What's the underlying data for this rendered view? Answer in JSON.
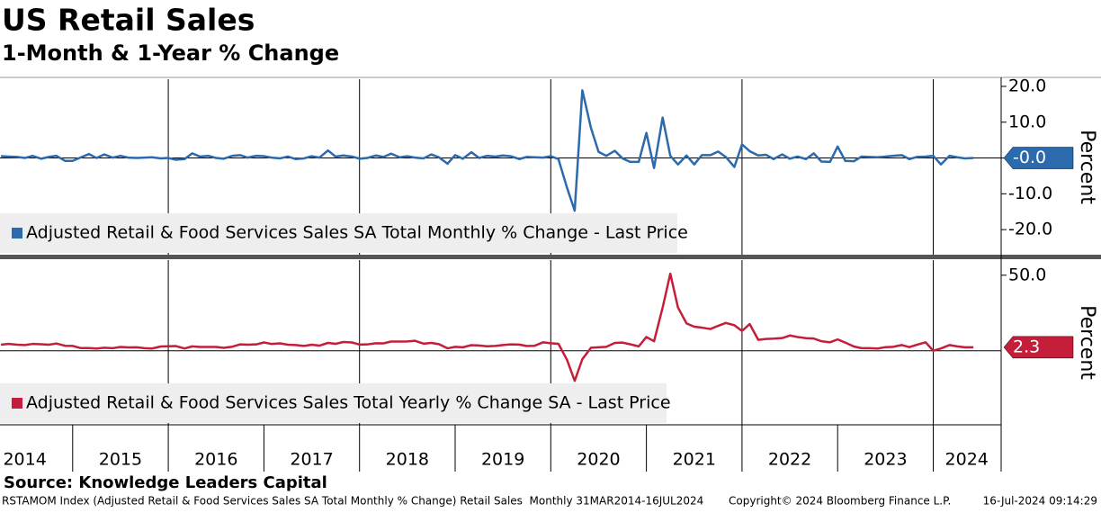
{
  "title": "US Retail Sales",
  "subtitle": "1-Month & 1-Year % Change",
  "source": "Source: Knowledge Leaders Capital",
  "footer": {
    "left": "RSTAMOM Index (Adjusted Retail & Food Services Sales SA Total Monthly % Change) Retail Sales  Monthly 31MAR2014-16JUL2024",
    "center": "Copyright© 2024 Bloomberg Finance L.P.",
    "right": "16-Jul-2024 09:14:29"
  },
  "chart_data": [
    {
      "type": "line",
      "y_label": "Percent",
      "legend": "bottom-left",
      "zero_line": true,
      "xlim": [
        2014.24,
        2024.71
      ],
      "xgrid": [
        2016,
        2018,
        2020,
        2022,
        2024
      ],
      "ylim": [
        -27,
        22
      ],
      "yticks": [
        {
          "value": -20,
          "label": "-20.0"
        },
        {
          "value": -10,
          "label": "-10.0"
        },
        {
          "value": 0,
          "label": "-0.0"
        },
        {
          "value": 10,
          "label": "10.0"
        },
        {
          "value": 20,
          "label": "20.0"
        }
      ],
      "x": [
        2014.25,
        2014.33,
        2014.42,
        2014.5,
        2014.58,
        2014.67,
        2014.75,
        2014.83,
        2014.92,
        2015,
        2015.08,
        2015.17,
        2015.25,
        2015.33,
        2015.42,
        2015.5,
        2015.58,
        2015.67,
        2015.75,
        2015.83,
        2015.92,
        2016,
        2016.08,
        2016.17,
        2016.25,
        2016.33,
        2016.42,
        2016.5,
        2016.58,
        2016.67,
        2016.75,
        2016.83,
        2016.92,
        2017,
        2017.08,
        2017.17,
        2017.25,
        2017.33,
        2017.42,
        2017.5,
        2017.58,
        2017.67,
        2017.75,
        2017.83,
        2017.92,
        2018,
        2018.08,
        2018.17,
        2018.25,
        2018.33,
        2018.42,
        2018.5,
        2018.58,
        2018.67,
        2018.75,
        2018.83,
        2018.92,
        2019,
        2019.08,
        2019.17,
        2019.25,
        2019.33,
        2019.42,
        2019.5,
        2019.58,
        2019.67,
        2019.75,
        2019.83,
        2019.92,
        2020,
        2020.08,
        2020.17,
        2020.25,
        2020.33,
        2020.42,
        2020.5,
        2020.58,
        2020.67,
        2020.75,
        2020.83,
        2020.92,
        2021,
        2021.08,
        2021.17,
        2021.25,
        2021.33,
        2021.42,
        2021.5,
        2021.58,
        2021.67,
        2021.75,
        2021.83,
        2021.92,
        2022,
        2022.08,
        2022.17,
        2022.25,
        2022.33,
        2022.42,
        2022.5,
        2022.58,
        2022.67,
        2022.75,
        2022.83,
        2022.92,
        2023,
        2023.08,
        2023.17,
        2023.25,
        2023.33,
        2023.42,
        2023.5,
        2023.58,
        2023.67,
        2023.75,
        2023.83,
        2023.92,
        2024,
        2024.08,
        2024.17,
        2024.25,
        2024.33,
        2024.42
      ],
      "series": [
        {
          "name": "Adjusted Retail & Food Services Sales SA Total Monthly % Change - Last Price",
          "color": "#2a6aad",
          "last_label": "-0.0",
          "values": [
            0.5,
            0.4,
            0.3,
            0.0,
            0.6,
            -0.2,
            0.3,
            0.6,
            -0.8,
            -0.8,
            0.1,
            1.1,
            0.0,
            1.0,
            0.1,
            0.6,
            0.1,
            0.0,
            0.1,
            0.2,
            -0.1,
            0.0,
            -0.5,
            -0.3,
            1.3,
            0.4,
            0.6,
            0.0,
            -0.2,
            0.6,
            0.8,
            0.1,
            0.6,
            0.5,
            0.1,
            -0.1,
            0.4,
            -0.3,
            -0.1,
            0.5,
            0.1,
            2.1,
            0.4,
            0.7,
            0.4,
            -0.2,
            0.0,
            0.7,
            0.3,
            1.2,
            0.2,
            0.5,
            0.1,
            -0.1,
            1.0,
            0.2,
            -1.6,
            0.8,
            -0.2,
            1.6,
            0.0,
            0.6,
            0.4,
            0.7,
            0.5,
            -0.3,
            0.3,
            0.2,
            0.1,
            0.5,
            -0.3,
            -8.3,
            -14.7,
            18.9,
            8.4,
            1.7,
            0.6,
            2.0,
            -0.1,
            -1.1,
            -1.1,
            7.0,
            -2.8,
            11.3,
            0.6,
            -1.8,
            0.7,
            -1.8,
            0.8,
            0.8,
            1.8,
            0.3,
            -2.5,
            3.8,
            1.9,
            0.7,
            0.9,
            -0.3,
            1.0,
            -0.2,
            0.4,
            -0.3,
            1.3,
            -1.0,
            -1.1,
            3.2,
            -0.8,
            -0.9,
            0.4,
            0.3,
            0.2,
            0.4,
            0.6,
            0.8,
            -0.3,
            0.3,
            0.4,
            0.6,
            -1.8,
            0.6,
            0.2,
            -0.1,
            0.0
          ]
        }
      ]
    },
    {
      "type": "line",
      "y_label": "Percent",
      "legend": "bottom-left",
      "zero_line": true,
      "xlim": [
        2014.24,
        2024.71
      ],
      "xgrid": [
        2016,
        2018,
        2020,
        2022,
        2024
      ],
      "ylim": [
        -49,
        60
      ],
      "yticks": [
        {
          "value": 50,
          "label": "50.0"
        }
      ],
      "xticks": [
        {
          "value": 2014.5,
          "label": "2014"
        },
        {
          "value": 2015.5,
          "label": "2015"
        },
        {
          "value": 2016.5,
          "label": "2016"
        },
        {
          "value": 2017.5,
          "label": "2017"
        },
        {
          "value": 2018.5,
          "label": "2018"
        },
        {
          "value": 2019.5,
          "label": "2019"
        },
        {
          "value": 2020.5,
          "label": "2020"
        },
        {
          "value": 2021.5,
          "label": "2021"
        },
        {
          "value": 2022.5,
          "label": "2022"
        },
        {
          "value": 2023.5,
          "label": "2023"
        },
        {
          "value": 2024.35,
          "label": "2024"
        }
      ],
      "x": [
        2014.25,
        2014.33,
        2014.42,
        2014.5,
        2014.58,
        2014.67,
        2014.75,
        2014.83,
        2014.92,
        2015,
        2015.08,
        2015.17,
        2015.25,
        2015.33,
        2015.42,
        2015.5,
        2015.58,
        2015.67,
        2015.75,
        2015.83,
        2015.92,
        2016,
        2016.08,
        2016.17,
        2016.25,
        2016.33,
        2016.42,
        2016.5,
        2016.58,
        2016.67,
        2016.75,
        2016.83,
        2016.92,
        2017,
        2017.08,
        2017.17,
        2017.25,
        2017.33,
        2017.42,
        2017.5,
        2017.58,
        2017.67,
        2017.75,
        2017.83,
        2017.92,
        2018,
        2018.08,
        2018.17,
        2018.25,
        2018.33,
        2018.42,
        2018.5,
        2018.58,
        2018.67,
        2018.75,
        2018.83,
        2018.92,
        2019,
        2019.08,
        2019.17,
        2019.25,
        2019.33,
        2019.42,
        2019.5,
        2019.58,
        2019.67,
        2019.75,
        2019.83,
        2019.92,
        2020,
        2020.08,
        2020.17,
        2020.25,
        2020.33,
        2020.42,
        2020.5,
        2020.58,
        2020.67,
        2020.75,
        2020.83,
        2020.92,
        2021,
        2021.08,
        2021.17,
        2021.25,
        2021.33,
        2021.42,
        2021.5,
        2021.58,
        2021.67,
        2021.75,
        2021.83,
        2021.92,
        2022,
        2022.08,
        2022.17,
        2022.25,
        2022.33,
        2022.42,
        2022.5,
        2022.58,
        2022.67,
        2022.75,
        2022.83,
        2022.92,
        2023,
        2023.08,
        2023.17,
        2023.25,
        2023.33,
        2023.42,
        2023.5,
        2023.58,
        2023.67,
        2023.75,
        2023.83,
        2023.92,
        2024,
        2024.08,
        2024.17,
        2024.25,
        2024.33,
        2024.42
      ],
      "series": [
        {
          "name": "Adjusted Retail & Food Services Sales Total Yearly % Change SA - Last Price",
          "color": "#c41e3a",
          "last_label": "2.3",
          "values": [
            4.0,
            4.5,
            4.0,
            3.8,
            4.5,
            4.3,
            4.0,
            4.8,
            3.3,
            3.2,
            1.8,
            1.8,
            1.5,
            2.0,
            1.7,
            2.5,
            2.2,
            2.3,
            1.7,
            1.5,
            2.8,
            3.0,
            3.1,
            1.5,
            2.9,
            2.5,
            2.5,
            2.5,
            1.9,
            2.7,
            4.2,
            4.0,
            4.2,
            5.5,
            4.5,
            4.9,
            4.0,
            3.8,
            3.2,
            4.0,
            3.4,
            5.2,
            4.6,
            5.8,
            5.5,
            4.1,
            4.2,
            5.0,
            4.9,
            6.1,
            6.1,
            6.2,
            6.6,
            4.7,
            5.2,
            4.4,
            1.6,
            2.6,
            2.3,
            3.7,
            3.5,
            3.0,
            3.2,
            3.8,
            4.2,
            4.1,
            3.1,
            3.3,
            5.6,
            5.0,
            4.6,
            -6.0,
            -19.9,
            -5.6,
            2.0,
            2.3,
            2.6,
            5.2,
            5.4,
            4.3,
            2.9,
            9.1,
            6.3,
            28.6,
            51.0,
            28.7,
            18.1,
            15.9,
            15.3,
            14.4,
            16.5,
            18.4,
            16.9,
            13.1,
            17.7,
            7.2,
            7.8,
            8.0,
            8.4,
            10.1,
            9.1,
            8.3,
            8.1,
            6.3,
            5.6,
            7.5,
            5.4,
            2.8,
            1.7,
            1.7,
            1.5,
            2.4,
            2.6,
            3.8,
            2.4,
            4.0,
            5.6,
            0.0,
            1.5,
            3.8,
            2.9,
            2.3,
            2.3
          ]
        }
      ]
    }
  ]
}
